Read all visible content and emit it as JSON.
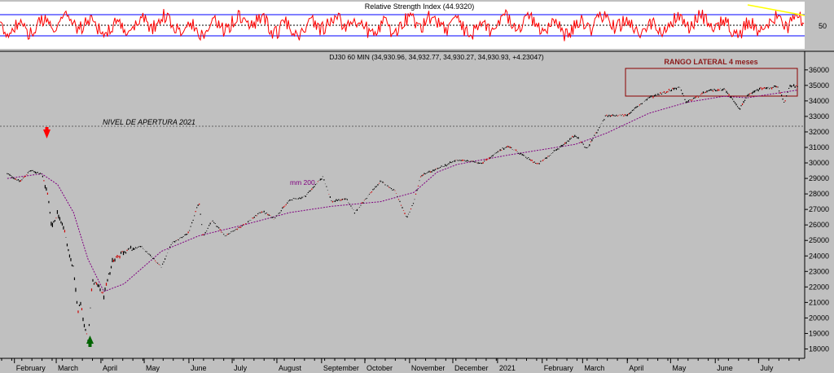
{
  "chart_data": [
    {
      "type": "line",
      "panel": "rsi",
      "title": "Relative Strength Index (44.9320)",
      "yticks": [
        50
      ],
      "colors": {
        "rsi": "#ff0000",
        "bands": "#0000ff",
        "trend": "#ffff00"
      }
    },
    {
      "type": "line",
      "panel": "price",
      "title": "DJ30 60 MIN (34,930.96, 34,932.77, 34,930.27, 34,930.93, +4.23047)",
      "ylim": [
        17500,
        36200
      ],
      "yticks": [
        18000,
        19000,
        20000,
        21000,
        22000,
        23000,
        24000,
        25000,
        26000,
        27000,
        28000,
        29000,
        30000,
        31000,
        32000,
        33000,
        34000,
        35000,
        36000
      ],
      "xlabels": [
        "February",
        "March",
        "April",
        "May",
        "June",
        "July",
        "August",
        "September",
        "October",
        "November",
        "December",
        "2021",
        "February",
        "March",
        "April",
        "May",
        "June",
        "July"
      ],
      "series": [
        {
          "kind": "price",
          "color": "#000000",
          "x": [
            "2020-01-27",
            "2020-02-05",
            "2020-02-12",
            "2020-02-20",
            "2020-02-24",
            "2020-02-27",
            "2020-03-02",
            "2020-03-06",
            "2020-03-10",
            "2020-03-13",
            "2020-03-16",
            "2020-03-18",
            "2020-03-20",
            "2020-03-23",
            "2020-03-26",
            "2020-03-31",
            "2020-04-03",
            "2020-04-09",
            "2020-04-17",
            "2020-04-29",
            "2020-05-13",
            "2020-05-20",
            "2020-06-01",
            "2020-06-08",
            "2020-06-11",
            "2020-06-17",
            "2020-06-26",
            "2020-07-09",
            "2020-07-22",
            "2020-07-30",
            "2020-08-10",
            "2020-08-20",
            "2020-09-02",
            "2020-09-08",
            "2020-09-18",
            "2020-09-24",
            "2020-10-08",
            "2020-10-12",
            "2020-10-22",
            "2020-10-30",
            "2020-11-04",
            "2020-11-09",
            "2020-11-20",
            "2020-12-04",
            "2020-12-21",
            "2021-01-08",
            "2021-01-29",
            "2021-02-24",
            "2021-03-04",
            "2021-03-17",
            "2021-04-01",
            "2021-04-16",
            "2021-05-07",
            "2021-05-12",
            "2021-05-26",
            "2021-06-07",
            "2021-06-18",
            "2021-06-23",
            "2021-07-02",
            "2021-07-14",
            "2021-07-19",
            "2021-07-23",
            "2021-07-28"
          ],
          "y": [
            29300,
            28800,
            29500,
            29300,
            28000,
            25900,
            26800,
            25900,
            24100,
            23200,
            20300,
            21000,
            19700,
            18600,
            22400,
            21900,
            21400,
            23700,
            24300,
            24600,
            23300,
            24800,
            25500,
            27500,
            25200,
            26300,
            25300,
            26000,
            26900,
            26400,
            27600,
            27800,
            29100,
            27500,
            27700,
            26800,
            28400,
            28800,
            28200,
            26400,
            27500,
            29200,
            29600,
            30200,
            30000,
            31100,
            29900,
            31800,
            30900,
            33000,
            33100,
            34200,
            34900,
            33900,
            34600,
            34800,
            33500,
            34300,
            34800,
            34900,
            33900,
            35000,
            34930
          ]
        },
        {
          "name": "mm 200",
          "kind": "ma",
          "color": "#800080",
          "x": [
            "2020-01-27",
            "2020-02-20",
            "2020-03-02",
            "2020-03-13",
            "2020-03-23",
            "2020-04-03",
            "2020-04-17",
            "2020-05-13",
            "2020-06-08",
            "2020-07-09",
            "2020-08-10",
            "2020-09-08",
            "2020-10-12",
            "2020-11-04",
            "2020-11-20",
            "2020-12-04",
            "2021-01-08",
            "2021-02-24",
            "2021-03-17",
            "2021-04-16",
            "2021-05-12",
            "2021-06-07",
            "2021-06-23",
            "2021-07-14",
            "2021-07-28"
          ],
          "y": [
            29000,
            29300,
            28600,
            26800,
            23800,
            21700,
            22200,
            24300,
            25300,
            26000,
            26800,
            27200,
            27500,
            28100,
            29400,
            29900,
            30500,
            31200,
            31900,
            33200,
            33900,
            34300,
            34200,
            34500,
            34700
          ]
        }
      ],
      "annotations": [
        {
          "text": "NIVEL DE APERTURA 2021",
          "y": 30600
        },
        {
          "text": "RANGO LATERAL 4 meses",
          "box_x": [
            "2021-03-31",
            "2021-07-31"
          ],
          "box_y": [
            32900,
            35400
          ]
        },
        {
          "text": "mm 200"
        }
      ],
      "markers": [
        {
          "kind": "arrow-down",
          "x": "2020-02-12",
          "color": "#ff0000"
        },
        {
          "kind": "arrow-up",
          "x": "2020-03-23",
          "color": "#006400"
        }
      ]
    }
  ]
}
